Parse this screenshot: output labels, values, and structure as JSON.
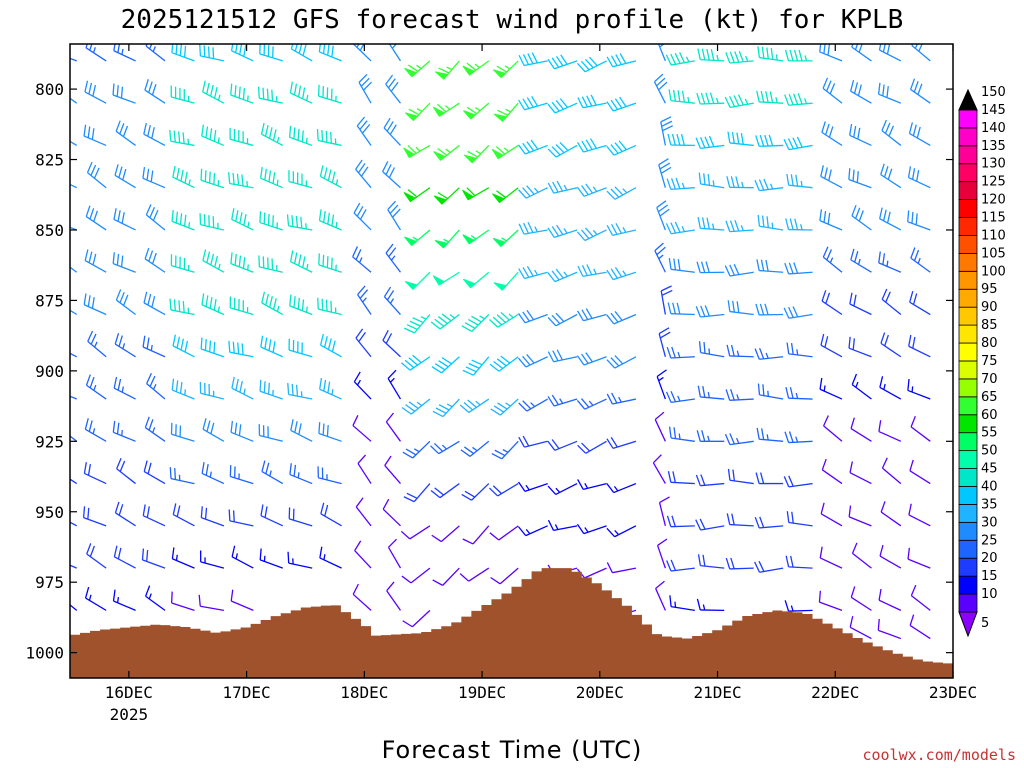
{
  "chart_data": {
    "type": "wind-profile",
    "title": "2025121512 GFS forecast wind profile (kt) for KPLB",
    "xlabel": "Forecast Time (UTC)",
    "ylabel": "",
    "credit": "coolwx.com/models",
    "x_ticks": [
      {
        "label": "16DEC",
        "sub": "2025",
        "day": 16
      },
      {
        "label": "17DEC",
        "sub": "",
        "day": 17
      },
      {
        "label": "18DEC",
        "sub": "",
        "day": 18
      },
      {
        "label": "19DEC",
        "sub": "",
        "day": 19
      },
      {
        "label": "20DEC",
        "sub": "",
        "day": 20
      },
      {
        "label": "21DEC",
        "sub": "",
        "day": 21
      },
      {
        "label": "22DEC",
        "sub": "",
        "day": 22
      },
      {
        "label": "23DEC",
        "sub": "",
        "day": 23
      }
    ],
    "xlim_day": [
      15.5,
      23.0
    ],
    "y_ticks": [
      "800",
      "825",
      "850",
      "875",
      "900",
      "925",
      "950",
      "975",
      "1000"
    ],
    "ylim_hpa": [
      784,
      1009
    ],
    "colorbar": {
      "ticks": [
        "5",
        "10",
        "15",
        "20",
        "25",
        "30",
        "35",
        "40",
        "45",
        "50",
        "55",
        "60",
        "65",
        "70",
        "75",
        "80",
        "85",
        "90",
        "95",
        "100",
        "105",
        "110",
        "115",
        "120",
        "125",
        "130",
        "135",
        "140",
        "145",
        "150"
      ],
      "colors": [
        "#8c00ff",
        "#5a00ff",
        "#0000ff",
        "#1e3cff",
        "#1e64ff",
        "#1e8cff",
        "#1eb4ff",
        "#00c8ff",
        "#00e6c8",
        "#00ffaa",
        "#00ff64",
        "#00e600",
        "#32ff32",
        "#96ff00",
        "#dcff00",
        "#ffff00",
        "#ffe600",
        "#ffc800",
        "#ffaa00",
        "#ff9600",
        "#ff7800",
        "#ff5000",
        "#ff2800",
        "#ff0000",
        "#e6003c",
        "#ff0064",
        "#ff0096",
        "#ff00c8",
        "#ff00ff",
        "#ff00ff"
      ]
    },
    "surface_pressure": [
      {
        "day": 15.5,
        "hpa": 994
      },
      {
        "day": 15.75,
        "hpa": 992
      },
      {
        "day": 16.0,
        "hpa": 991
      },
      {
        "day": 16.25,
        "hpa": 990
      },
      {
        "day": 16.5,
        "hpa": 991
      },
      {
        "day": 16.75,
        "hpa": 993
      },
      {
        "day": 17.0,
        "hpa": 991
      },
      {
        "day": 17.25,
        "hpa": 987
      },
      {
        "day": 17.5,
        "hpa": 984
      },
      {
        "day": 17.75,
        "hpa": 983
      },
      {
        "day": 18.0,
        "hpa": 990
      },
      {
        "day": 18.1,
        "hpa": 994
      },
      {
        "day": 18.5,
        "hpa": 993
      },
      {
        "day": 18.75,
        "hpa": 990
      },
      {
        "day": 19.0,
        "hpa": 984
      },
      {
        "day": 19.25,
        "hpa": 978
      },
      {
        "day": 19.5,
        "hpa": 970
      },
      {
        "day": 19.75,
        "hpa": 970
      },
      {
        "day": 20.0,
        "hpa": 976
      },
      {
        "day": 20.25,
        "hpa": 984
      },
      {
        "day": 20.5,
        "hpa": 994
      },
      {
        "day": 20.75,
        "hpa": 995
      },
      {
        "day": 21.0,
        "hpa": 992
      },
      {
        "day": 21.25,
        "hpa": 987
      },
      {
        "day": 21.5,
        "hpa": 985
      },
      {
        "day": 21.75,
        "hpa": 986
      },
      {
        "day": 22.0,
        "hpa": 991
      },
      {
        "day": 22.25,
        "hpa": 996
      },
      {
        "day": 22.5,
        "hpa": 1000
      },
      {
        "day": 22.75,
        "hpa": 1003
      },
      {
        "day": 23.0,
        "hpa": 1004
      }
    ],
    "wind_levels_hpa": [
      790,
      805,
      820,
      835,
      850,
      865,
      880,
      895,
      910,
      925,
      940,
      955,
      970,
      985,
      995
    ],
    "wind_time_step_hours": 6,
    "wind_regimes": [
      {
        "from_day": 15.5,
        "to_day": 16.5,
        "dir_deg": 300,
        "speed_kt": [
          25,
          30,
          30,
          30,
          30,
          28,
          28,
          27,
          26,
          24,
          22,
          20,
          18,
          15,
          12
        ]
      },
      {
        "from_day": 16.5,
        "to_day": 17.9,
        "dir_deg": 290,
        "speed_kt": [
          40,
          45,
          45,
          45,
          45,
          45,
          45,
          40,
          35,
          30,
          25,
          20,
          15,
          12,
          10
        ]
      },
      {
        "from_day": 17.9,
        "to_day": 18.5,
        "dir_deg": 320,
        "speed_kt": [
          30,
          30,
          30,
          30,
          30,
          25,
          25,
          20,
          15,
          12,
          10,
          10,
          8,
          8,
          5
        ]
      },
      {
        "from_day": 18.5,
        "to_day": 19.5,
        "dir_deg": 230,
        "speed_kt": [
          65,
          65,
          65,
          60,
          55,
          50,
          45,
          40,
          35,
          25,
          18,
          12,
          10,
          8,
          5
        ]
      },
      {
        "from_day": 19.5,
        "to_day": 20.4,
        "dir_deg": 250,
        "speed_kt": [
          40,
          40,
          40,
          35,
          35,
          35,
          30,
          30,
          25,
          20,
          15,
          15,
          10,
          10,
          10
        ]
      },
      {
        "from_day": 20.4,
        "to_day": 20.8,
        "dir_deg": 340,
        "speed_kt": [
          30,
          30,
          30,
          30,
          30,
          25,
          20,
          20,
          15,
          12,
          12,
          10,
          10,
          10,
          10
        ]
      },
      {
        "from_day": 20.8,
        "to_day": 22.0,
        "dir_deg": 270,
        "speed_kt": [
          45,
          45,
          40,
          35,
          35,
          30,
          30,
          25,
          25,
          25,
          20,
          20,
          20,
          15,
          15
        ]
      },
      {
        "from_day": 22.0,
        "to_day": 23.0,
        "dir_deg": 300,
        "speed_kt": [
          30,
          30,
          30,
          30,
          28,
          26,
          22,
          18,
          15,
          12,
          10,
          10,
          10,
          10,
          10
        ]
      }
    ],
    "grid": false,
    "colors": {
      "terrain": "#a0522d",
      "frame": "#000000",
      "background": "#ffffff",
      "credit": "#c83232"
    }
  }
}
